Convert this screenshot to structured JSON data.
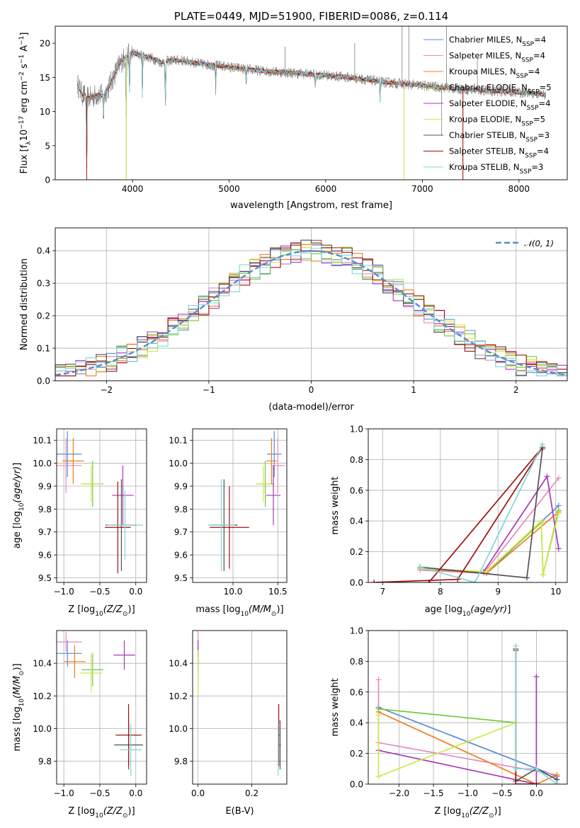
{
  "colors": {
    "chabrier_miles": "#5b8bd0",
    "salpeter_miles": "#e58ac3",
    "kroupa_miles": "#f07d1a",
    "chabrier_elodie": "#76c83a",
    "salpeter_elodie": "#a838b8",
    "kroupa_elodie": "#cfe84a",
    "chabrier_stelib": "#525252",
    "salpeter_stelib": "#a01010",
    "kroupa_stelib": "#7fd8d8",
    "data": "#808080",
    "gauss": "#5b8bd0",
    "grid": "#b0b0b0"
  },
  "chart_data": [
    {
      "id": "spectrum",
      "type": "line",
      "title": "PLATE=0449, MJD=51900, FIBERID=0086, z=0.114",
      "xlabel": "wavelength [Angstrom, rest frame]",
      "ylabel": "Flux [f",
      "ylabel_sub": "λ",
      "ylabel_mid": "10",
      "ylabel_sup1": "−17",
      "ylabel_mid2": " erg cm",
      "ylabel_sup2": "−2",
      "ylabel_mid3": " s",
      "ylabel_sup3": "−1",
      "ylabel_mid4": " A",
      "ylabel_sup4": "−1",
      "ylabel_end": "]",
      "xlim": [
        3200,
        8500
      ],
      "ylim": [
        0,
        22.5
      ],
      "xticks": [
        4000,
        5000,
        6000,
        7000,
        8000
      ],
      "xtick_labels": [
        "4000",
        "5000",
        "6000",
        "7000",
        "8000"
      ],
      "yticks": [
        0,
        5,
        10,
        15,
        20
      ],
      "ytick_labels": [
        "0",
        "5",
        "10",
        "15",
        "20"
      ],
      "grid": false,
      "legend_placement": "upper-right",
      "continuum": {
        "x": [
          3430,
          3480,
          3550,
          3650,
          3700,
          3750,
          3800,
          3850,
          3900,
          3950,
          4000,
          4100,
          4200,
          4300,
          4400,
          4500,
          4700,
          5000,
          5300,
          5600,
          6000,
          6300,
          6600,
          7000,
          7300,
          7600,
          7900,
          8200,
          8280
        ],
        "y": [
          14.0,
          12.5,
          12.0,
          12.5,
          12.3,
          13.5,
          15.0,
          16.5,
          17.6,
          18.2,
          18.6,
          18.2,
          17.8,
          17.2,
          17.5,
          17.5,
          17.0,
          16.5,
          16.0,
          15.7,
          15.3,
          14.9,
          14.3,
          13.8,
          13.4,
          13.1,
          12.9,
          12.6,
          12.4
        ]
      },
      "absorption_lines": [
        {
          "x": 3525,
          "y": 0
        },
        {
          "x": 3700,
          "y": 9.2
        },
        {
          "x": 3934,
          "y": 9.5
        },
        {
          "x": 3969,
          "y": 12.0
        },
        {
          "x": 4102,
          "y": 12.5
        },
        {
          "x": 4340,
          "y": 9.2
        },
        {
          "x": 4861,
          "y": 13.0
        },
        {
          "x": 5175,
          "y": 13.8
        },
        {
          "x": 5892,
          "y": 13.0
        },
        {
          "x": 6563,
          "y": 11.0
        }
      ],
      "sky_lines": [
        {
          "x": 3935,
          "y": 0
        },
        {
          "x": 6810,
          "y": 0
        },
        {
          "x": 7420,
          "y": 0
        },
        {
          "x": 7200,
          "y": 6.5
        },
        {
          "x": 7250,
          "y": 22.5
        },
        {
          "x": 6790,
          "y": 22.5
        },
        {
          "x": 6860,
          "y": 22.5
        },
        {
          "x": 7570,
          "y": 18.0
        },
        {
          "x": 6300,
          "y": 20.0
        },
        {
          "x": 5580,
          "y": 19.5
        }
      ],
      "legend": [
        {
          "key": "chabrier_miles",
          "pre": "Chabrier MILES, N",
          "sub": "SSP",
          "post": "=4"
        },
        {
          "key": "salpeter_miles",
          "pre": "Salpeter MILES, N",
          "sub": "SSP",
          "post": "=4"
        },
        {
          "key": "kroupa_miles",
          "pre": "Kroupa MILES, N",
          "sub": "SSP",
          "post": "=4"
        },
        {
          "key": "chabrier_elodie",
          "pre": "Chabrier ELODIE, N",
          "sub": "SSP",
          "post": "=5"
        },
        {
          "key": "salpeter_elodie",
          "pre": "Salpeter ELODIE, N",
          "sub": "SSP",
          "post": "=4"
        },
        {
          "key": "kroupa_elodie",
          "pre": "Kroupa ELODIE, N",
          "sub": "SSP",
          "post": "=5"
        },
        {
          "key": "chabrier_stelib",
          "pre": "Chabrier STELIB, N",
          "sub": "SSP",
          "post": "=3"
        },
        {
          "key": "salpeter_stelib",
          "pre": "Salpeter STELIB, N",
          "sub": "SSP",
          "post": "=4"
        },
        {
          "key": "kroupa_stelib",
          "pre": "Kroupa STELIB, N",
          "sub": "SSP",
          "post": "=3"
        }
      ]
    },
    {
      "id": "residuals",
      "type": "line",
      "xlabel": "(data-model)/error",
      "ylabel": "Normed distribution",
      "xlim": [
        -2.5,
        2.5
      ],
      "ylim": [
        0,
        0.47
      ],
      "xticks": [
        -2,
        -1,
        0,
        1,
        2
      ],
      "xtick_labels": [
        "−2",
        "−1",
        "0",
        "1",
        "2"
      ],
      "yticks": [
        0,
        0.1,
        0.2,
        0.3,
        0.4
      ],
      "ytick_labels": [
        "0.0",
        "0.1",
        "0.2",
        "0.3",
        "0.4"
      ],
      "grid": true,
      "legend_placement": "upper-right",
      "legend_label": "𝒩(0, 1)",
      "bin_width": 0.1,
      "gauss_mean": 0,
      "gauss_sigma": 1,
      "hist_amplitude": 0.4,
      "hist_noise": 0.035
    },
    {
      "id": "age_vs_z",
      "type": "scatter",
      "xlabel": "Z [log",
      "xlabel_sub": "10",
      "xlabel_math": "(Z/Z",
      "xlabel_end": ")]",
      "ylabel": "age  [log",
      "ylabel_sub": "10",
      "ylabel_math": "(age/yr)",
      "ylabel_end": "]",
      "xlim": [
        -1.1,
        0.15
      ],
      "ylim": [
        9.48,
        10.15
      ],
      "xticks": [
        -1.0,
        -0.5,
        0.0
      ],
      "xtick_labels": [
        "−1.0",
        "−0.5",
        "0.0"
      ],
      "yticks": [
        9.5,
        9.6,
        9.7,
        9.8,
        9.9,
        10.0,
        10.1
      ],
      "ytick_labels": [
        "9.5",
        "9.6",
        "9.7",
        "9.8",
        "9.9",
        "10.0",
        "10.1"
      ],
      "grid": true,
      "points": [
        {
          "key": "chabrier_miles",
          "x": -0.95,
          "xerr": 0.2,
          "y": 10.04,
          "yerr": 0.1
        },
        {
          "key": "salpeter_miles",
          "x": -0.97,
          "xerr": 0.22,
          "y": 9.99,
          "yerr": 0.12
        },
        {
          "key": "kroupa_miles",
          "x": -0.87,
          "xerr": 0.15,
          "y": 10.01,
          "yerr": 0.1
        },
        {
          "key": "chabrier_elodie",
          "x": -0.6,
          "xerr": 0.15,
          "y": 9.91,
          "yerr": 0.1
        },
        {
          "key": "salpeter_elodie",
          "x": -0.18,
          "xerr": 0.15,
          "y": 9.86,
          "yerr": 0.13
        },
        {
          "key": "kroupa_elodie",
          "x": -0.62,
          "xerr": 0.15,
          "y": 9.91,
          "yerr": 0.08
        },
        {
          "key": "chabrier_stelib",
          "x": -0.2,
          "xerr": 0.22,
          "y": 9.73,
          "yerr": 0.2
        },
        {
          "key": "salpeter_stelib",
          "x": -0.25,
          "xerr": 0.18,
          "y": 9.72,
          "yerr": 0.2
        },
        {
          "key": "kroupa_stelib",
          "x": -0.15,
          "xerr": 0.25,
          "y": 9.73,
          "yerr": 0.15
        }
      ]
    },
    {
      "id": "age_vs_mass",
      "type": "scatter",
      "xlabel": "mass [log",
      "xlabel_sub": "10",
      "xlabel_math": "(M/M",
      "xlabel_end": ")]",
      "xlim": [
        9.55,
        10.6
      ],
      "ylim": [
        9.48,
        10.15
      ],
      "xticks": [
        10.0,
        10.5
      ],
      "xtick_labels": [
        "10.0",
        "10.5"
      ],
      "yticks": [
        9.5,
        9.6,
        9.7,
        9.8,
        9.9,
        10.0,
        10.1
      ],
      "ytick_labels": [
        "9.5",
        "9.6",
        "9.7",
        "9.8",
        "9.9",
        "10.0",
        "10.1"
      ],
      "grid": true,
      "points": [
        {
          "key": "chabrier_miles",
          "x": 10.46,
          "xerr": 0.08,
          "y": 10.04,
          "yerr": 0.1
        },
        {
          "key": "salpeter_miles",
          "x": 10.5,
          "xerr": 0.08,
          "y": 9.99,
          "yerr": 0.12
        },
        {
          "key": "kroupa_miles",
          "x": 10.43,
          "xerr": 0.06,
          "y": 10.01,
          "yerr": 0.1
        },
        {
          "key": "chabrier_elodie",
          "x": 10.36,
          "xerr": 0.1,
          "y": 9.91,
          "yerr": 0.1
        },
        {
          "key": "salpeter_elodie",
          "x": 10.45,
          "xerr": 0.08,
          "y": 9.86,
          "yerr": 0.13
        },
        {
          "key": "kroupa_elodie",
          "x": 10.34,
          "xerr": 0.08,
          "y": 9.91,
          "yerr": 0.08
        },
        {
          "key": "chabrier_stelib",
          "x": 9.9,
          "xerr": 0.15,
          "y": 9.73,
          "yerr": 0.2
        },
        {
          "key": "salpeter_stelib",
          "x": 9.96,
          "xerr": 0.22,
          "y": 9.72,
          "yerr": 0.18
        },
        {
          "key": "kroupa_stelib",
          "x": 9.87,
          "xerr": 0.15,
          "y": 9.73,
          "yerr": 0.2
        }
      ]
    },
    {
      "id": "weight_vs_age",
      "type": "line",
      "xlabel": "age  [log",
      "xlabel_sub": "10",
      "xlabel_math": "(age/yr)",
      "xlabel_end": "]",
      "ylabel": "mass weight",
      "xlim": [
        6.75,
        10.2
      ],
      "ylim": [
        0,
        1
      ],
      "xticks": [
        7,
        8,
        9,
        10
      ],
      "xtick_labels": [
        "7",
        "8",
        "9",
        "10"
      ],
      "yticks": [
        0,
        0.2,
        0.4,
        0.6,
        0.8,
        1.0
      ],
      "ytick_labels": [
        "0.0",
        "0.2",
        "0.4",
        "0.6",
        "0.8",
        "1.0"
      ],
      "grid": true,
      "series": [
        {
          "key": "chabrier_miles",
          "x": [
            7.65,
            8.8,
            10.05
          ],
          "y": [
            0.09,
            0.06,
            0.5
          ]
        },
        {
          "key": "salpeter_miles",
          "x": [
            7.65,
            8.75,
            10.05
          ],
          "y": [
            0.08,
            0.06,
            0.68
          ]
        },
        {
          "key": "kroupa_miles",
          "x": [
            7.65,
            8.8,
            10.05
          ],
          "y": [
            0.09,
            0.06,
            0.46
          ]
        },
        {
          "key": "chabrier_elodie",
          "x": [
            7.65,
            8.8,
            9.75,
            9.78,
            10.05
          ],
          "y": [
            0.09,
            0.07,
            0.39,
            0.05,
            0.47
          ]
        },
        {
          "key": "salpeter_elodie",
          "x": [
            7.65,
            8.75,
            9.85,
            10.05
          ],
          "y": [
            0.09,
            0.07,
            0.69,
            0.22
          ]
        },
        {
          "key": "kroupa_elodie",
          "x": [
            7.65,
            8.8,
            9.75,
            9.78,
            10.05
          ],
          "y": [
            0.09,
            0.07,
            0.4,
            0.05,
            0.45
          ]
        },
        {
          "key": "chabrier_stelib",
          "x": [
            7.65,
            9.5,
            9.77
          ],
          "y": [
            0.1,
            0.03,
            0.87
          ]
        },
        {
          "key": "salpeter_stelib",
          "x": [
            6.85,
            8.3,
            9.77,
            7.8
          ],
          "y": [
            0.0,
            0.02,
            0.88,
            0.0
          ]
        },
        {
          "key": "kroupa_stelib",
          "x": [
            7.65,
            8.6,
            9.77
          ],
          "y": [
            0.1,
            0.0,
            0.9
          ]
        }
      ]
    },
    {
      "id": "mass_vs_z",
      "type": "scatter",
      "xlabel": "Z [log",
      "xlabel_sub": "10",
      "xlabel_math": "(Z/Z",
      "xlabel_end": ")]",
      "ylabel": "mass [log",
      "ylabel_sub": "10",
      "ylabel_math": "(M/M",
      "ylabel_end": ")]",
      "xlim": [
        -1.1,
        0.15
      ],
      "ylim": [
        9.66,
        10.6
      ],
      "xticks": [
        -1.0,
        -0.5,
        0.0
      ],
      "xtick_labels": [
        "−1.0",
        "−0.5",
        "0.0"
      ],
      "yticks": [
        9.8,
        10.0,
        10.2,
        10.4
      ],
      "ytick_labels": [
        "9.8",
        "10.0",
        "10.2",
        "10.4"
      ],
      "grid": true,
      "points": [
        {
          "key": "chabrier_miles",
          "x": -0.95,
          "xerr": 0.2,
          "y": 10.46,
          "yerr": 0.08
        },
        {
          "key": "salpeter_miles",
          "x": -0.97,
          "xerr": 0.22,
          "y": 10.53,
          "yerr": 0.06
        },
        {
          "key": "kroupa_miles",
          "x": -0.85,
          "xerr": 0.15,
          "y": 10.41,
          "yerr": 0.1
        },
        {
          "key": "chabrier_elodie",
          "x": -0.6,
          "xerr": 0.15,
          "y": 10.36,
          "yerr": 0.1
        },
        {
          "key": "salpeter_elodie",
          "x": -0.16,
          "xerr": 0.15,
          "y": 10.45,
          "yerr": 0.09
        },
        {
          "key": "kroupa_elodie",
          "x": -0.62,
          "xerr": 0.15,
          "y": 10.34,
          "yerr": 0.12
        },
        {
          "key": "chabrier_stelib",
          "x": -0.1,
          "xerr": 0.2,
          "y": 9.9,
          "yerr": 0.15
        },
        {
          "key": "salpeter_stelib",
          "x": -0.1,
          "xerr": 0.18,
          "y": 9.96,
          "yerr": 0.19
        },
        {
          "key": "kroupa_stelib",
          "x": -0.07,
          "xerr": 0.15,
          "y": 9.87,
          "yerr": 0.16
        }
      ]
    },
    {
      "id": "mass_vs_ebv",
      "type": "scatter",
      "xlabel": "E(B-V)",
      "xlim": [
        -0.02,
        0.33
      ],
      "ylim": [
        9.66,
        10.6
      ],
      "xticks": [
        0.0,
        0.2
      ],
      "xtick_labels": [
        "0.0",
        "0.2"
      ],
      "yticks": [
        9.8,
        10.0,
        10.2,
        10.4
      ],
      "ytick_labels": [
        "9.8",
        "10.0",
        "10.2",
        "10.4"
      ],
      "grid": true,
      "points": [
        {
          "key": "chabrier_miles",
          "x": 0.0,
          "xerr": 0.002,
          "y": 10.46,
          "yerr": 0.08
        },
        {
          "key": "salpeter_miles",
          "x": 0.0,
          "xerr": 0.002,
          "y": 10.53,
          "yerr": 0.06
        },
        {
          "key": "kroupa_miles",
          "x": 0.0,
          "xerr": 0.002,
          "y": 10.41,
          "yerr": 0.1
        },
        {
          "key": "chabrier_elodie",
          "x": 0.0,
          "xerr": 0.002,
          "y": 10.36,
          "yerr": 0.1
        },
        {
          "key": "salpeter_elodie",
          "x": 0.0,
          "xerr": 0.002,
          "y": 10.45,
          "yerr": 0.09
        },
        {
          "key": "kroupa_elodie",
          "x": 0.0,
          "xerr": 0.002,
          "y": 10.34,
          "yerr": 0.14
        },
        {
          "key": "chabrier_stelib",
          "x": 0.305,
          "xerr": 0.003,
          "y": 9.9,
          "yerr": 0.15
        },
        {
          "key": "salpeter_stelib",
          "x": 0.3,
          "xerr": 0.003,
          "y": 9.96,
          "yerr": 0.19
        },
        {
          "key": "kroupa_stelib",
          "x": 0.298,
          "xerr": 0.003,
          "y": 9.87,
          "yerr": 0.16
        }
      ]
    },
    {
      "id": "weight_vs_z",
      "type": "line",
      "xlabel": "Z [log",
      "xlabel_sub": "10",
      "xlabel_math": "(Z/Z",
      "xlabel_end": ")]",
      "ylabel": "mass weight",
      "xlim": [
        -2.45,
        0.45
      ],
      "ylim": [
        0,
        1
      ],
      "xticks": [
        -2.0,
        -1.5,
        -1.0,
        -0.5,
        0.0
      ],
      "xtick_labels": [
        "−2.0",
        "−1.5",
        "−1.0",
        "−0.5",
        "0.0"
      ],
      "yticks": [
        0,
        0.2,
        0.4,
        0.6,
        0.8,
        1.0
      ],
      "ytick_labels": [
        "0.0",
        "0.2",
        "0.4",
        "0.6",
        "0.8",
        "1.0"
      ],
      "grid": true,
      "series": [
        {
          "key": "chabrier_miles",
          "x": [
            -2.3,
            0.3,
            0.3
          ],
          "y": [
            0.5,
            0.05,
            0.0
          ]
        },
        {
          "key": "salpeter_miles",
          "x": [
            -2.3,
            -2.3,
            0.3
          ],
          "y": [
            0.68,
            0.27,
            0.06
          ]
        },
        {
          "key": "kroupa_miles",
          "x": [
            -2.3,
            0.0,
            0.3
          ],
          "y": [
            0.47,
            0.0,
            0.06
          ]
        },
        {
          "key": "chabrier_elodie",
          "x": [
            -2.3,
            -0.3,
            -0.3,
            0.0
          ],
          "y": [
            0.49,
            0.4,
            0.03,
            0.0
          ]
        },
        {
          "key": "salpeter_elodie",
          "x": [
            -2.3,
            0.0,
            0.0,
            0.0
          ],
          "y": [
            0.22,
            0.0,
            0.7,
            0.0
          ]
        },
        {
          "key": "kroupa_elodie",
          "x": [
            -2.3,
            -2.3,
            -0.3,
            -0.3
          ],
          "y": [
            0.45,
            0.05,
            0.4,
            0.02
          ]
        },
        {
          "key": "chabrier_stelib",
          "x": [
            -0.3,
            -0.3,
            0.0,
            0.3
          ],
          "y": [
            0.87,
            0.02,
            0.1,
            0.03
          ]
        },
        {
          "key": "salpeter_stelib",
          "x": [
            -0.3,
            -0.3,
            0.0
          ],
          "y": [
            0.88,
            0.0,
            0.0
          ]
        },
        {
          "key": "kroupa_stelib",
          "x": [
            -0.3,
            -0.3,
            0.0,
            0.3
          ],
          "y": [
            0.9,
            0.1,
            0.1,
            0.0
          ]
        }
      ]
    }
  ]
}
